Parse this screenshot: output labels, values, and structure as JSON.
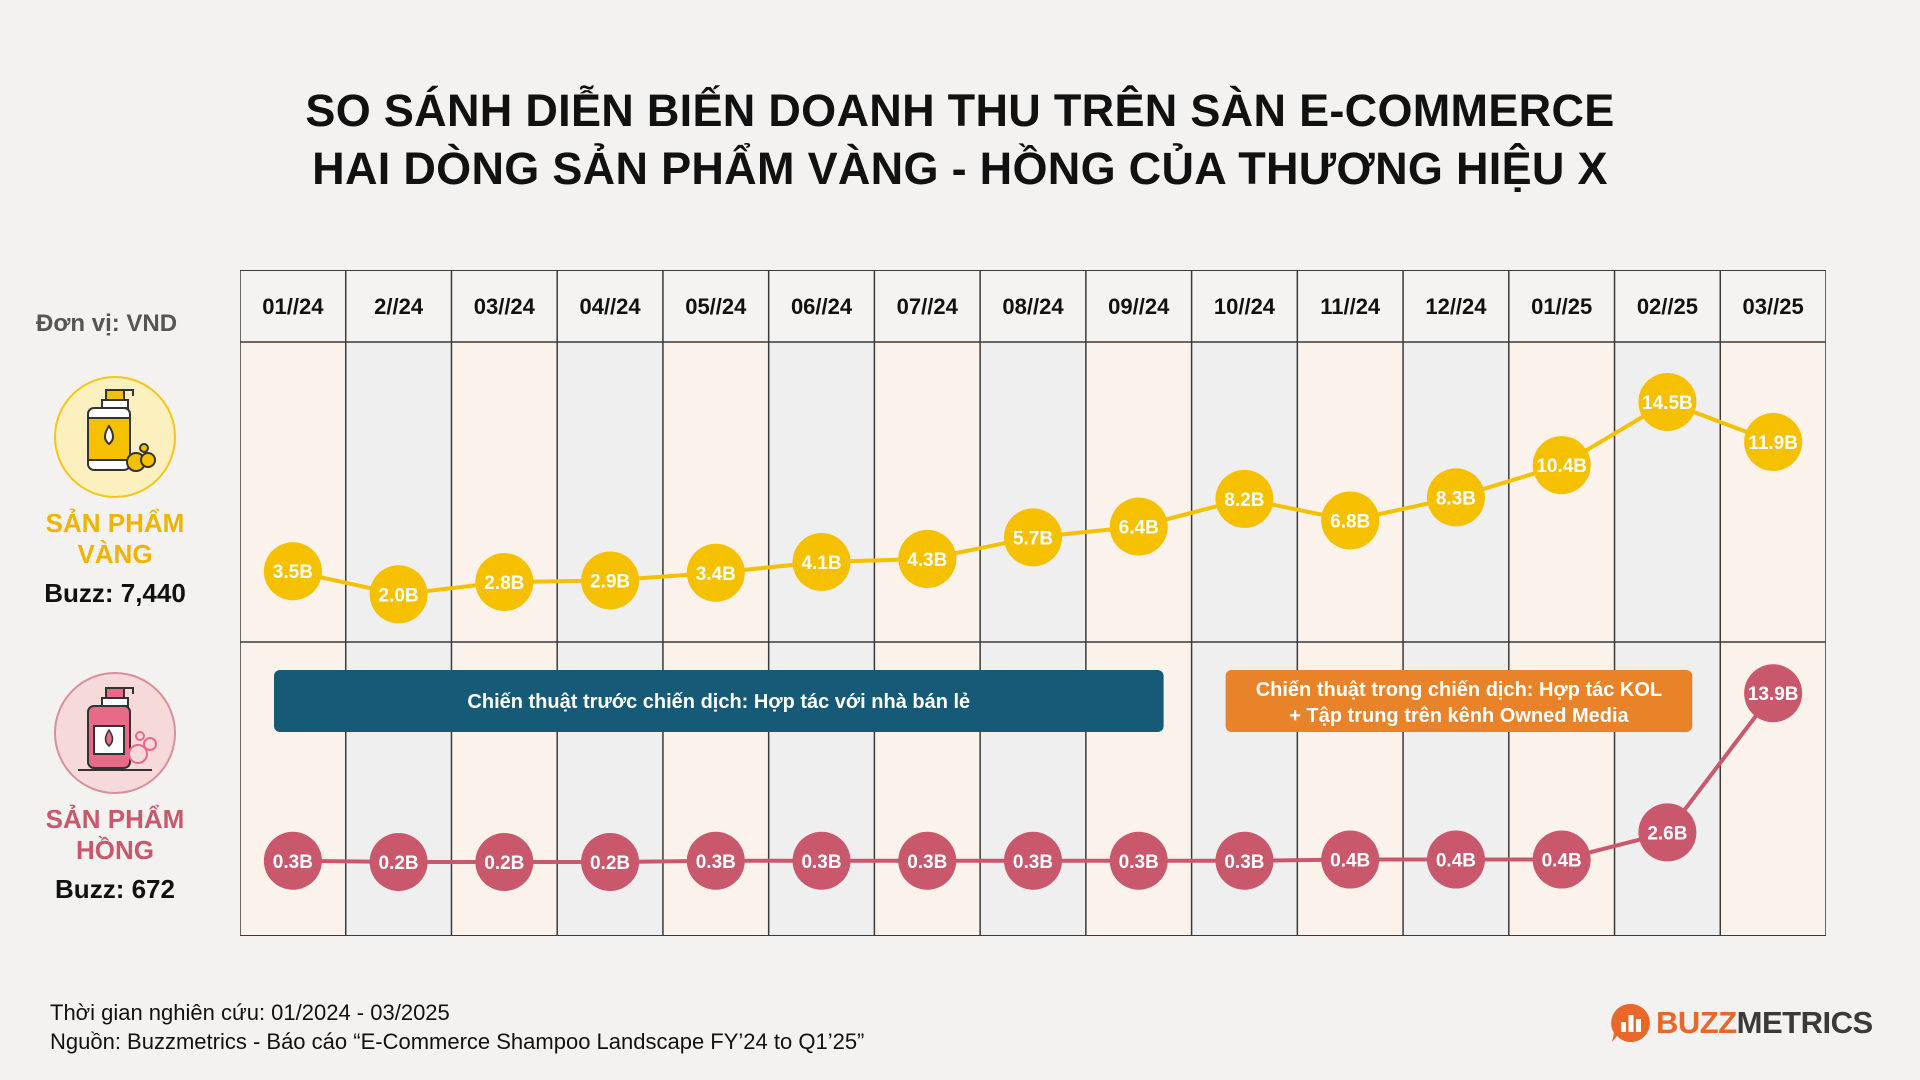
{
  "title": {
    "line1": "SO SÁNH DIỄN BIẾN DOANH THU TRÊN SÀN E-COMMERCE",
    "line2": "HAI DÒNG SẢN PHẨM VÀNG - HỒNG CỦA THƯƠNG HIỆU X"
  },
  "unit_label": "Đơn vị: VND",
  "products": {
    "yellow": {
      "name_line1": "SẢN PHẨM",
      "name_line2": "VÀNG",
      "buzz": "Buzz: 7,440",
      "color": "#f5c000"
    },
    "pink": {
      "name_line1": "SẢN PHẨM",
      "name_line2": "HỒNG",
      "buzz": "Buzz: 672",
      "color": "#c9586d"
    }
  },
  "chart_data": {
    "type": "line",
    "categories": [
      "01//24",
      "2//24",
      "03//24",
      "04//24",
      "05//24",
      "06//24",
      "07//24",
      "08//24",
      "09//24",
      "10//24",
      "11//24",
      "12//24",
      "01//25",
      "02//25",
      "03//25"
    ],
    "series": [
      {
        "name": "SẢN PHẨM VÀNG",
        "values": [
          3.5,
          2.0,
          2.8,
          2.9,
          3.4,
          4.1,
          4.3,
          5.7,
          6.4,
          8.2,
          6.8,
          8.3,
          10.4,
          14.5,
          11.9
        ],
        "labels": [
          "3.5B",
          "2.0B",
          "2.8B",
          "2.9B",
          "3.4B",
          "4.1B",
          "4.3B",
          "5.7B",
          "6.4B",
          "8.2B",
          "6.8B",
          "8.3B",
          "10.4B",
          "14.5B",
          "11.9B"
        ],
        "color": "#f5c000"
      },
      {
        "name": "SẢN PHẨM HỒNG",
        "values": [
          0.3,
          0.2,
          0.2,
          0.2,
          0.3,
          0.3,
          0.3,
          0.3,
          0.3,
          0.3,
          0.4,
          0.4,
          0.4,
          2.6,
          13.9
        ],
        "labels": [
          "0.3B",
          "0.2B",
          "0.2B",
          "0.2B",
          "0.3B",
          "0.3B",
          "0.3B",
          "0.3B",
          "0.3B",
          "0.3B",
          "0.4B",
          "0.4B",
          "0.4B",
          "2.6B",
          "13.9B"
        ],
        "color": "#c9586d"
      }
    ],
    "annotations": [
      {
        "text_line1": "Chiến thuật trước chiến dịch: Hợp tác với nhà bán lẻ",
        "text_line2": "",
        "from": "01//24",
        "to": "09//24",
        "color": "#175a78"
      },
      {
        "text_line1": "Chiến thuật trong chiến dịch: Hợp tác KOL",
        "text_line2": "+ Tập trung trên kênh Owned Media",
        "from": "10//24",
        "to": "02//25",
        "color": "#e8832a"
      }
    ],
    "colors": {
      "band_light": "#fcf2ec",
      "band_gray": "#efefef",
      "grid": "#3a3a3a"
    }
  },
  "footer": {
    "period": "Thời gian nghiên cứu: 01/2024 - 03/2025",
    "source": "Nguồn: Buzzmetrics - Báo cáo “E-Commerce Shampoo Landscape FY’24 to Q1’25”"
  },
  "logo": {
    "part1": "BUZZ",
    "part2": "METRICS"
  }
}
